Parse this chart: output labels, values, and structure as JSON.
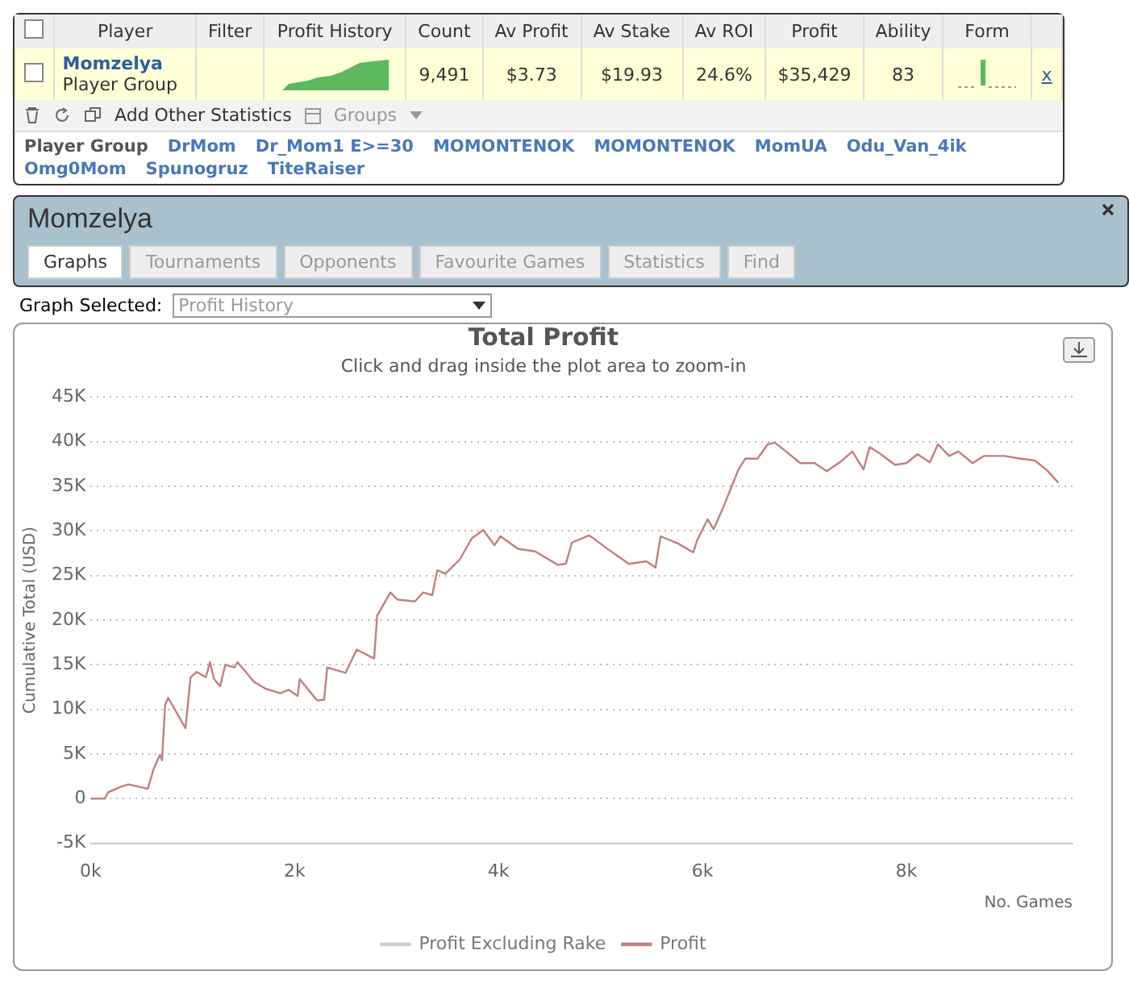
{
  "chart_data": [
    {
      "type": "other",
      "categories": [
        "Player",
        "Filter",
        "Profit History",
        "Count",
        "Av Profit",
        "Av Stake",
        "Av ROI",
        "Profit",
        "Ability",
        "Form",
        null
      ],
      "cell_labels": [
        [
          "Momzelya\nPlayer Group",
          null,
          null,
          "9,491",
          "$3.73",
          "$19.93",
          "24.6%",
          "$35,429",
          "83",
          null,
          "x"
        ]
      ],
      "annotations": [
        "Add Other Statistics",
        "Groups",
        "Player Group",
        "DrMom",
        "Dr_Mom1 E>=30",
        "MOMONTENOK",
        "MOMONTENOK",
        "MomUA",
        "Odu_Van_4ik",
        "Omg0Mom",
        "Spunogruz",
        "TiteRaiser",
        "Momzelya",
        "Graphs",
        "Tournaments",
        "Opponents",
        "Favourite Games",
        "Statistics",
        "Find",
        "Graph Selected:",
        "Profit History"
      ]
    },
    {
      "type": "line",
      "title": "Total Profit",
      "subtitle": "Click and drag inside the plot area to zoom-in",
      "xlabel": "No. Games",
      "ylabel": "Cumulative Total (USD)",
      "xlim": [
        0,
        9630
      ],
      "xticks": [
        {
          "value": 0,
          "label": "0k"
        },
        {
          "value": 2000,
          "label": "2k"
        },
        {
          "value": 4000,
          "label": "4k"
        },
        {
          "value": 6000,
          "label": "6k"
        },
        {
          "value": 8000,
          "label": "8k"
        }
      ],
      "ylim": [
        -5000,
        45000
      ],
      "yticks": [
        {
          "value": -5000,
          "label": "-5K"
        },
        {
          "value": 0,
          "label": "0"
        },
        {
          "value": 5000,
          "label": "5K"
        },
        {
          "value": 10000,
          "label": "10K"
        },
        {
          "value": 15000,
          "label": "15K"
        },
        {
          "value": 20000,
          "label": "20K"
        },
        {
          "value": 25000,
          "label": "25K"
        },
        {
          "value": 30000,
          "label": "30K"
        },
        {
          "value": 35000,
          "label": "35K"
        },
        {
          "value": 40000,
          "label": "40K"
        },
        {
          "value": 45000,
          "label": "45K"
        }
      ],
      "grid": "y",
      "legend": "bottom",
      "marker": "none",
      "line_style": "solid",
      "series": [
        {
          "name": "Profit Excluding Rake",
          "color": "#cccccc"
        },
        {
          "name": "Profit",
          "color": "#c08080",
          "x": [
            0,
            140,
            170,
            290,
            370,
            560,
            620,
            680,
            700,
            730,
            760,
            930,
            980,
            1040,
            1130,
            1170,
            1210,
            1270,
            1320,
            1410,
            1440,
            1600,
            1720,
            1860,
            1940,
            2030,
            2050,
            2220,
            2290,
            2320,
            2500,
            2610,
            2780,
            2810,
            2940,
            3010,
            3180,
            3260,
            3350,
            3400,
            3480,
            3620,
            3740,
            3850,
            3960,
            4020,
            4190,
            4360,
            4580,
            4660,
            4720,
            4890,
            5080,
            5280,
            5450,
            5540,
            5590,
            5760,
            5910,
            5950,
            6050,
            6110,
            6210,
            6350,
            6420,
            6540,
            6640,
            6710,
            6820,
            6960,
            7100,
            7220,
            7360,
            7470,
            7580,
            7640,
            7750,
            7890,
            8000,
            8110,
            8230,
            8310,
            8420,
            8510,
            8650,
            8760,
            8960,
            9120,
            9260,
            9380,
            9491
          ],
          "values": [
            0,
            0,
            700,
            1300,
            1600,
            1100,
            3400,
            4900,
            4300,
            10500,
            11300,
            7900,
            13600,
            14200,
            13600,
            15300,
            13400,
            12600,
            15000,
            14700,
            15300,
            13100,
            12300,
            11800,
            12200,
            11500,
            13400,
            11000,
            11100,
            14700,
            14100,
            16700,
            15700,
            20500,
            23100,
            22300,
            22100,
            23100,
            22800,
            25600,
            25200,
            26800,
            29200,
            30100,
            28400,
            29400,
            28000,
            27700,
            26200,
            26300,
            28700,
            29500,
            27900,
            26300,
            26600,
            25900,
            29400,
            28600,
            27600,
            29000,
            31300,
            30200,
            32800,
            36800,
            38100,
            38100,
            39700,
            39900,
            38900,
            37600,
            37600,
            36700,
            37800,
            38900,
            36900,
            39400,
            38600,
            37400,
            37600,
            38600,
            37700,
            39700,
            38400,
            38900,
            37600,
            38400,
            38400,
            38100,
            37900,
            36800,
            35400
          ]
        }
      ]
    }
  ]
}
